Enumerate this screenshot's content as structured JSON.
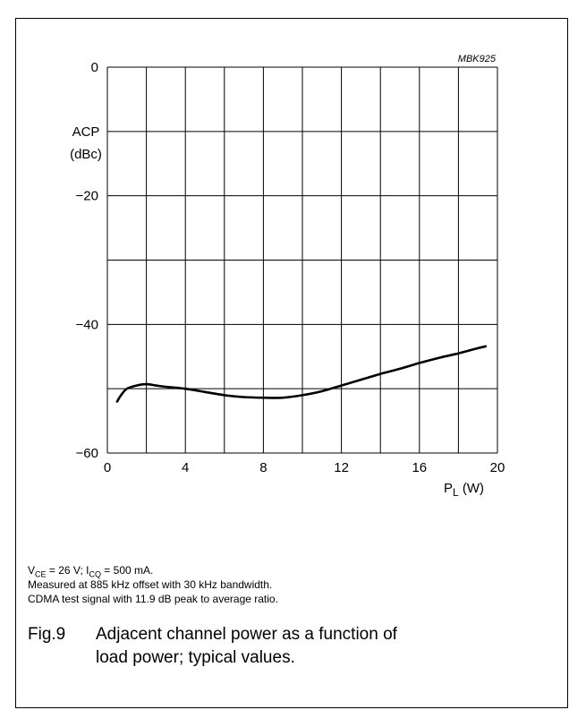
{
  "chart_data": {
    "type": "line",
    "code": "MBK925",
    "ylabel": {
      "line1": "ACP",
      "line2": "(dBc)"
    },
    "xlabel": {
      "main": "P",
      "sub": "L",
      "unit": " (W)"
    },
    "xlim": [
      0,
      20
    ],
    "ylim": [
      -60,
      0
    ],
    "x_ticks": [
      0,
      4,
      8,
      12,
      16,
      20
    ],
    "x_tick_labels": [
      "0",
      "4",
      "8",
      "12",
      "16",
      "20"
    ],
    "y_ticks": [
      0,
      -20,
      -40,
      -60
    ],
    "y_tick_labels": [
      "0",
      "−20",
      "−40",
      "−60"
    ],
    "grid": true,
    "series": [
      {
        "x": [
          0.5,
          0.7,
          1.0,
          1.5,
          2.0,
          2.5,
          3.0,
          4.0,
          5.0,
          6.0,
          7.0,
          8.0,
          9.0,
          10.0,
          11.0,
          12.0,
          13.0,
          14.0,
          15.0,
          16.0,
          17.0,
          18.0,
          19.0,
          19.4
        ],
        "y": [
          -52.0,
          -51.0,
          -50.0,
          -49.5,
          -49.3,
          -49.5,
          -49.7,
          -50.0,
          -50.5,
          -51.0,
          -51.3,
          -51.4,
          -51.4,
          -51.0,
          -50.4,
          -49.5,
          -48.6,
          -47.7,
          -46.9,
          -46.0,
          -45.2,
          -44.5,
          -43.7,
          -43.4
        ]
      }
    ]
  },
  "conditions": {
    "vce": {
      "sym": "V",
      "sub": "CE",
      "rest": " = 26 V; "
    },
    "icq": {
      "sym": "I",
      "sub": "CQ",
      "rest": " = 500 mA."
    },
    "line2": "Measured at 885 kHz offset with 30 kHz bandwidth.",
    "line3": "CDMA test signal with 11.9 dB peak to average ratio."
  },
  "caption": {
    "label": "Fig.9",
    "line1": "Adjacent channel power as a function of",
    "line2": "load power; typical values."
  }
}
